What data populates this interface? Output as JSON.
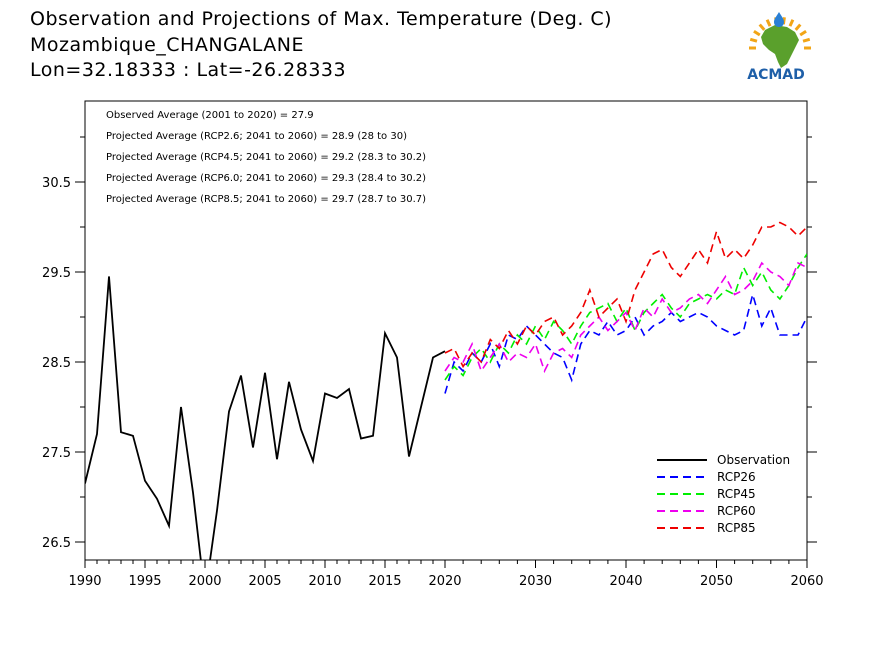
{
  "title_lines": [
    "Observation and Projections of Max. Temperature (Deg. C)",
    "Mozambique_CHANGALANE",
    "Lon=32.18333 : Lat=-26.28333"
  ],
  "logo": {
    "text": "ACMAD",
    "colors": {
      "africa": "#5aa02c",
      "text": "#1e5fa8",
      "sun": "#f2a516",
      "drop": "#2a7fd4"
    }
  },
  "annotations": [
    "Observed Average (2001 to 2020) = 27.9",
    "Projected Average (RCP2.6; 2041 to 2060) = 28.9 (28 to 30)",
    "Projected Average (RCP4.5; 2041 to 2060) = 29.2 (28.3 to 30.2)",
    "Projected Average (RCP6.0; 2041 to 2060) = 29.3 (28.4 to 30.2)",
    "Projected Average (RCP8.5; 2041 to 2060) = 29.7 (28.7 to 30.7)"
  ],
  "chart_data": {
    "type": "line",
    "xlim": [
      1990,
      2060
    ],
    "ylim": [
      26.3,
      31.4
    ],
    "x_axis_break": {
      "left": [
        1990,
        2020
      ],
      "right": [
        2020,
        2060
      ]
    },
    "x_ticks_left": [
      "1990",
      "1995",
      "2000",
      "2005",
      "2010",
      "2015",
      "2020"
    ],
    "x_ticks_right": [
      "2030",
      "2040",
      "2050",
      "2060"
    ],
    "y_ticks": [
      "26.5",
      "27.5",
      "28.5",
      "29.5",
      "30.5"
    ],
    "legend_position": "bottom-right",
    "legend": [
      "Observation",
      "RCP26",
      "RCP45",
      "RCP60",
      "RCP85"
    ],
    "series": [
      {
        "name": "Observation",
        "color": "#000000",
        "dash": false,
        "x": [
          1990,
          1991,
          1992,
          1993,
          1994,
          1995,
          1996,
          1997,
          1998,
          1999,
          2000,
          2001,
          2002,
          2003,
          2004,
          2005,
          2006,
          2007,
          2008,
          2009,
          2010,
          2011,
          2012,
          2013,
          2014,
          2015,
          2016,
          2017,
          2018,
          2019,
          2020
        ],
        "y": [
          27.15,
          27.7,
          29.45,
          27.72,
          27.68,
          27.18,
          26.98,
          26.68,
          28.0,
          27.05,
          25.9,
          26.85,
          27.95,
          28.35,
          27.55,
          28.38,
          27.42,
          28.28,
          27.75,
          27.4,
          28.15,
          28.1,
          28.2,
          27.65,
          27.68,
          28.82,
          28.55,
          27.45,
          28.0,
          28.55,
          28.62
        ]
      },
      {
        "name": "RCP26",
        "color": "#0000ff",
        "dash": true,
        "x": [
          2020,
          2021,
          2022,
          2023,
          2024,
          2025,
          2026,
          2027,
          2028,
          2029,
          2030,
          2031,
          2032,
          2033,
          2034,
          2035,
          2036,
          2037,
          2038,
          2039,
          2040,
          2041,
          2042,
          2043,
          2044,
          2045,
          2046,
          2047,
          2048,
          2049,
          2050,
          2051,
          2052,
          2053,
          2054,
          2055,
          2056,
          2057,
          2058,
          2059,
          2060
        ],
        "y": [
          28.15,
          28.5,
          28.4,
          28.6,
          28.5,
          28.7,
          28.45,
          28.8,
          28.75,
          28.9,
          28.8,
          28.7,
          28.6,
          28.55,
          28.3,
          28.7,
          28.85,
          28.8,
          28.95,
          28.8,
          28.85,
          29.0,
          28.8,
          28.9,
          28.95,
          29.05,
          28.95,
          29.0,
          29.05,
          29.0,
          28.9,
          28.85,
          28.8,
          28.85,
          29.25,
          28.9,
          29.1,
          28.8,
          28.8,
          28.8,
          29.0
        ]
      },
      {
        "name": "RCP45",
        "color": "#00ee00",
        "dash": true,
        "x": [
          2020,
          2021,
          2022,
          2023,
          2024,
          2025,
          2026,
          2027,
          2028,
          2029,
          2030,
          2031,
          2032,
          2033,
          2034,
          2035,
          2036,
          2037,
          2038,
          2039,
          2040,
          2041,
          2042,
          2043,
          2044,
          2045,
          2046,
          2047,
          2048,
          2049,
          2050,
          2051,
          2052,
          2053,
          2054,
          2055,
          2056,
          2057,
          2058,
          2059,
          2060
        ],
        "y": [
          28.3,
          28.45,
          28.35,
          28.55,
          28.65,
          28.5,
          28.7,
          28.6,
          28.8,
          28.7,
          28.9,
          28.75,
          28.95,
          28.85,
          28.7,
          28.9,
          29.05,
          29.1,
          29.15,
          28.95,
          29.1,
          28.85,
          29.05,
          29.15,
          29.25,
          29.1,
          29.0,
          29.15,
          29.2,
          29.25,
          29.2,
          29.3,
          29.25,
          29.55,
          29.35,
          29.5,
          29.3,
          29.2,
          29.35,
          29.55,
          29.7
        ]
      },
      {
        "name": "RCP60",
        "color": "#ee00ee",
        "dash": true,
        "x": [
          2020,
          2021,
          2022,
          2023,
          2024,
          2025,
          2026,
          2027,
          2028,
          2029,
          2030,
          2031,
          2032,
          2033,
          2034,
          2035,
          2036,
          2037,
          2038,
          2039,
          2040,
          2041,
          2042,
          2043,
          2044,
          2045,
          2046,
          2047,
          2048,
          2049,
          2050,
          2051,
          2052,
          2053,
          2054,
          2055,
          2056,
          2057,
          2058,
          2059,
          2060
        ],
        "y": [
          28.4,
          28.55,
          28.5,
          28.7,
          28.4,
          28.55,
          28.7,
          28.5,
          28.6,
          28.55,
          28.7,
          28.4,
          28.6,
          28.65,
          28.55,
          28.8,
          28.9,
          29.0,
          28.85,
          28.95,
          29.05,
          28.85,
          29.1,
          29.0,
          29.2,
          29.05,
          29.1,
          29.2,
          29.25,
          29.15,
          29.3,
          29.45,
          29.25,
          29.3,
          29.4,
          29.6,
          29.5,
          29.45,
          29.35,
          29.6,
          29.55
        ]
      },
      {
        "name": "RCP85",
        "color": "#ee0000",
        "dash": true,
        "x": [
          2020,
          2021,
          2022,
          2023,
          2024,
          2025,
          2026,
          2027,
          2028,
          2029,
          2030,
          2031,
          2032,
          2033,
          2034,
          2035,
          2036,
          2037,
          2038,
          2039,
          2040,
          2041,
          2042,
          2043,
          2044,
          2045,
          2046,
          2047,
          2048,
          2049,
          2050,
          2051,
          2052,
          2053,
          2054,
          2055,
          2056,
          2057,
          2058,
          2059,
          2060
        ],
        "y": [
          28.6,
          28.65,
          28.45,
          28.6,
          28.5,
          28.75,
          28.65,
          28.85,
          28.7,
          28.9,
          28.8,
          28.95,
          29.0,
          28.8,
          28.9,
          29.05,
          29.3,
          29.0,
          29.1,
          29.2,
          28.95,
          29.3,
          29.5,
          29.7,
          29.75,
          29.55,
          29.45,
          29.6,
          29.75,
          29.6,
          29.95,
          29.65,
          29.75,
          29.65,
          29.8,
          30.0,
          30.0,
          30.05,
          30.0,
          29.9,
          30.0
        ]
      }
    ]
  }
}
